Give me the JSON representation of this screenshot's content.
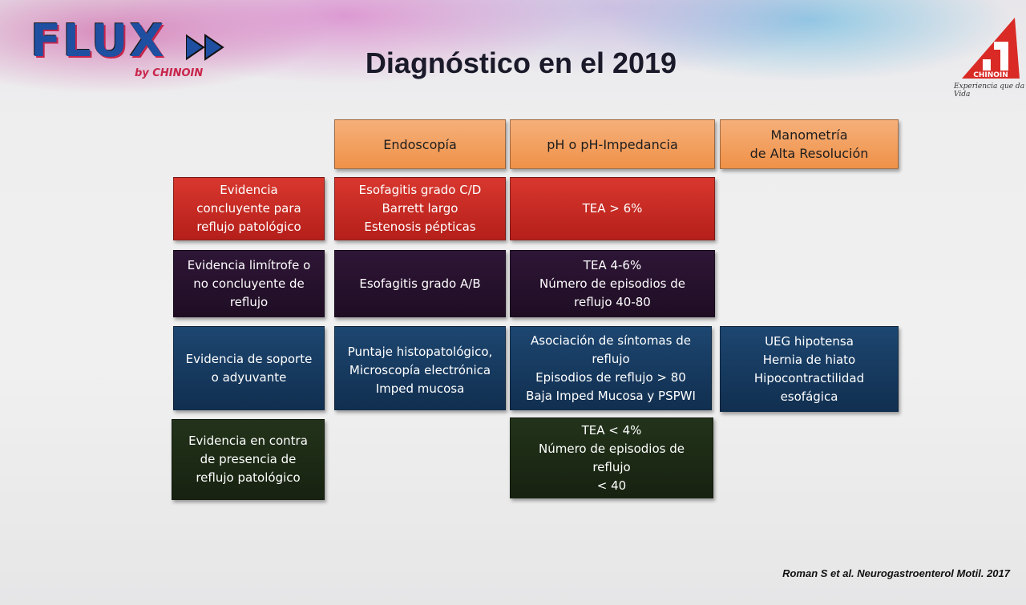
{
  "logo": {
    "brand": "FLUX",
    "by": "by CHINOIN"
  },
  "corner_logo": {
    "name": "CHINOIN",
    "tagline": "Experiencia que da Vida"
  },
  "title": "Diagnóstico en el 2019",
  "columns": [
    {
      "lines": [
        "Endoscopía"
      ]
    },
    {
      "lines": [
        "pH o pH-Impedancia"
      ]
    },
    {
      "lines": [
        "Manometría",
        "de Alta Resolución"
      ]
    }
  ],
  "rows": [
    {
      "label": [
        "Evidencia",
        "concluyente para",
        "reflujo patológico"
      ],
      "endoscopia": [
        "Esofagitis grado C/D",
        "Barrett largo",
        "Estenosis pépticas"
      ],
      "ph": [
        "TEA > 6%"
      ],
      "manometria": []
    },
    {
      "label": [
        "Evidencia limítrofe o",
        "no concluyente de",
        "reflujo"
      ],
      "endoscopia": [
        "Esofagitis grado A/B"
      ],
      "ph": [
        "TEA 4-6%",
        "Número de episodios de",
        "reflujo 40-80"
      ],
      "manometria": []
    },
    {
      "label": [
        "Evidencia de soporte",
        "o adyuvante"
      ],
      "endoscopia": [
        "Puntaje histopatológico,",
        "Microscopía electrónica",
        "Imped mucosa"
      ],
      "ph": [
        "Asociación de síntomas de",
        "reflujo",
        "Episodios de reflujo > 80",
        "Baja Imped Mucosa y PSPWI"
      ],
      "manometria": [
        "UEG hipotensa",
        "Hernia de hiato",
        "Hipocontractilidad",
        "esofágica"
      ]
    },
    {
      "label": [
        "Evidencia en contra",
        "de presencia de",
        "reflujo patológico"
      ],
      "endoscopia": [],
      "ph": [
        "TEA < 4%",
        "Número de episodios de",
        "reflujo",
        "< 40"
      ],
      "manometria": []
    }
  ],
  "citation": "Roman S et al. Neurogastroenterol Motil. 2017",
  "colors": {
    "header": "#ef9148",
    "conclusive": "#c62a23",
    "borderline": "#27112d",
    "supportive": "#163b60",
    "against": "#1d2a15"
  }
}
